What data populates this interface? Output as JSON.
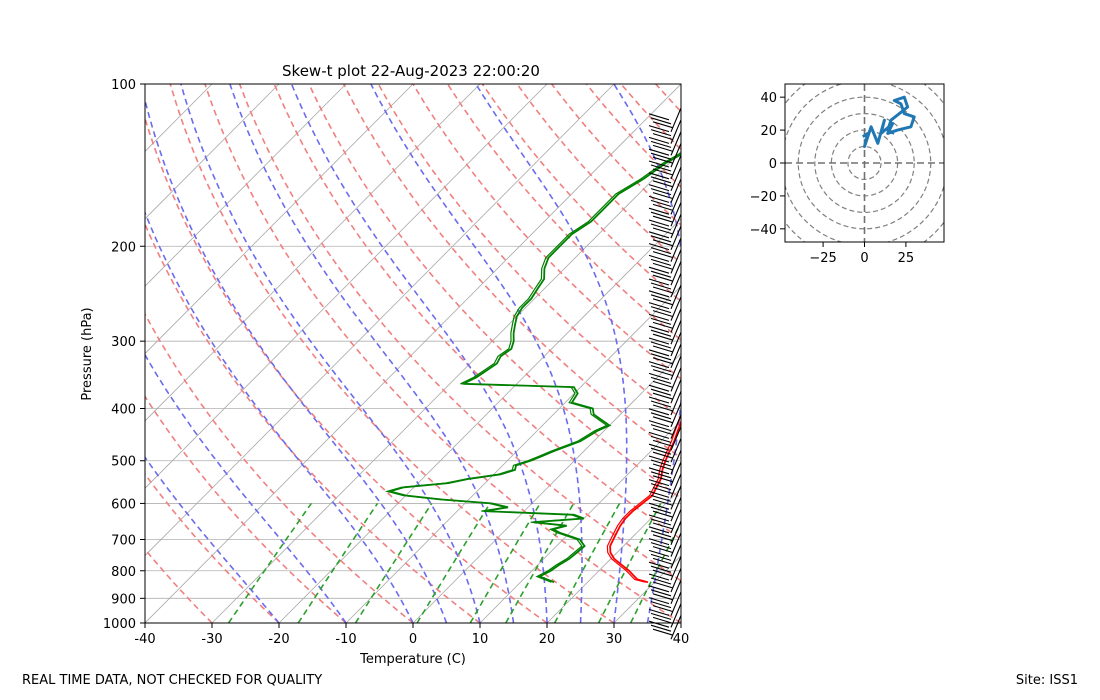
{
  "footer": {
    "left": "REAL TIME DATA, NOT CHECKED FOR QUALITY",
    "right": "Site: ISS1"
  },
  "chart_data": [
    {
      "type": "line",
      "subtype": "skew-t",
      "title": "Skew-t plot 22-Aug-2023 22:00:20",
      "xlabel": "Temperature (C)",
      "ylabel": "Pressure (hPa)",
      "xlim": [
        -40,
        40
      ],
      "ylim": [
        1000,
        100
      ],
      "yscale": "log",
      "xticks": [
        -40,
        -30,
        -20,
        -10,
        0,
        10,
        20,
        30,
        40
      ],
      "yticks": [
        100,
        200,
        300,
        400,
        500,
        600,
        700,
        800,
        900,
        1000
      ],
      "grid": true,
      "colors": {
        "temperature": "#ff0000",
        "dewpoint": "#008000",
        "dry_adiabats": "#f08080",
        "moist_adiabats": "#6b6bee",
        "mixing_ratio": "#2ca02c",
        "isotherms": "#b0b0b0",
        "wind_barbs": "#000000"
      },
      "series": [
        {
          "key": "temperature",
          "points": [
            [
              840,
              29.0
            ],
            [
              830,
              27.0
            ],
            [
              800,
              24.5
            ],
            [
              780,
              22.5
            ],
            [
              760,
              20.5
            ],
            [
              740,
              19.0
            ],
            [
              720,
              18.0
            ],
            [
              700,
              17.5
            ],
            [
              680,
              17.0
            ],
            [
              660,
              16.5
            ],
            [
              640,
              16.2
            ],
            [
              620,
              16.2
            ],
            [
              600,
              16.5
            ],
            [
              580,
              16.8
            ],
            [
              560,
              16.2
            ],
            [
              540,
              15.6
            ],
            [
              520,
              14.5
            ],
            [
              500,
              13.6
            ],
            [
              480,
              12.8
            ],
            [
              460,
              12.0
            ],
            [
              440,
              11.0
            ],
            [
              420,
              10.0
            ],
            [
              400,
              9.0
            ],
            [
              390,
              8.0
            ],
            [
              380,
              7.0
            ],
            [
              370,
              6.5
            ],
            [
              360,
              6.3
            ],
            [
              350,
              6.0
            ],
            [
              340,
              5.5
            ],
            [
              330,
              5.0
            ],
            [
              320,
              4.7
            ],
            [
              310,
              4.2
            ],
            [
              300,
              3.5
            ],
            [
              290,
              3.1
            ],
            [
              280,
              2.9
            ],
            [
              270,
              3.3
            ],
            [
              260,
              3.6
            ],
            [
              250,
              3.2
            ],
            [
              240,
              2.6
            ],
            [
              230,
              2.0
            ],
            [
              220,
              1.2
            ],
            [
              210,
              0.5
            ],
            [
              200,
              -0.2
            ],
            [
              190,
              -1.5
            ],
            [
              180,
              -2.8
            ],
            [
              170,
              -4.0
            ],
            [
              160,
              -5.0
            ],
            [
              150,
              -6.2
            ],
            [
              140,
              -7.8
            ],
            [
              130,
              -9.5
            ],
            [
              125,
              -10.5
            ],
            [
              120,
              -10.5
            ],
            [
              115,
              -9.0
            ],
            [
              110,
              -7.5
            ],
            [
              105,
              -6.2
            ],
            [
              100,
              -6.0
            ]
          ]
        },
        {
          "key": "dewpoint",
          "points": [
            [
              840,
              15.0
            ],
            [
              820,
              12.0
            ],
            [
              800,
              12.8
            ],
            [
              780,
              13.2
            ],
            [
              760,
              13.8
            ],
            [
              740,
              14.0
            ],
            [
              720,
              14.2
            ],
            [
              700,
              12.5
            ],
            [
              690,
              10.5
            ],
            [
              680,
              8.5
            ],
            [
              670,
              7.0
            ],
            [
              660,
              8.5
            ],
            [
              650,
              3.0
            ],
            [
              640,
              10.0
            ],
            [
              630,
              8.0
            ],
            [
              620,
              -6.0
            ],
            [
              610,
              -3.0
            ],
            [
              600,
              -6.0
            ],
            [
              590,
              -14.0
            ],
            [
              580,
              -20.0
            ],
            [
              570,
              -23.0
            ],
            [
              560,
              -21.5
            ],
            [
              550,
              -15.5
            ],
            [
              540,
              -13.0
            ],
            [
              530,
              -9.0
            ],
            [
              520,
              -7.5
            ],
            [
              510,
              -8.0
            ],
            [
              500,
              -6.5
            ],
            [
              490,
              -5.5
            ],
            [
              480,
              -4.5
            ],
            [
              460,
              -2.0
            ],
            [
              440,
              -1.0
            ],
            [
              430,
              0.0
            ],
            [
              420,
              -2.0
            ],
            [
              410,
              -4.0
            ],
            [
              400,
              -5.0
            ],
            [
              390,
              -9.0
            ],
            [
              375,
              -9.5
            ],
            [
              365,
              -11.0
            ],
            [
              360,
              -28.0
            ],
            [
              350,
              -27.0
            ],
            [
              340,
              -26.5
            ],
            [
              330,
              -26.0
            ],
            [
              320,
              -26.5
            ],
            [
              310,
              -26.0
            ],
            [
              300,
              -26.8
            ],
            [
              290,
              -28.0
            ],
            [
              280,
              -29.0
            ],
            [
              270,
              -30.0
            ],
            [
              260,
              -30.5
            ],
            [
              250,
              -30.5
            ],
            [
              240,
              -31.0
            ],
            [
              230,
              -31.5
            ],
            [
              220,
              -33.0
            ],
            [
              210,
              -34.0
            ],
            [
              200,
              -34.0
            ],
            [
              190,
              -34.0
            ],
            [
              180,
              -33.0
            ],
            [
              170,
              -33.0
            ],
            [
              160,
              -33.0
            ],
            [
              150,
              -31.5
            ],
            [
              140,
              -30.5
            ],
            [
              130,
              -28.5
            ],
            [
              120,
              -27.0
            ],
            [
              115,
              -27.0
            ],
            [
              110,
              -26.5
            ],
            [
              105,
              -26.0
            ],
            [
              100,
              -26.0
            ]
          ]
        }
      ]
    },
    {
      "type": "line",
      "subtype": "hodograph",
      "xlim": [
        -48,
        48
      ],
      "ylim": [
        -48,
        48
      ],
      "xticks": [
        -25,
        0,
        25
      ],
      "yticks": [
        -40,
        -20,
        0,
        20,
        40
      ],
      "rings": [
        10,
        20,
        30,
        40,
        50,
        60,
        70
      ],
      "color": "#1f77b4",
      "series": [
        {
          "points": [
            [
              -1,
              16
            ],
            [
              2,
              18
            ],
            [
              0,
              10
            ],
            [
              4,
              22
            ],
            [
              8,
              12
            ],
            [
              12,
              26
            ],
            [
              10,
              18
            ],
            [
              17,
              24
            ],
            [
              14,
              18
            ],
            [
              20,
              20
            ],
            [
              28,
              22
            ],
            [
              30,
              28
            ],
            [
              24,
              30
            ],
            [
              22,
              36
            ],
            [
              18,
              38
            ],
            [
              24,
              40
            ],
            [
              26,
              34
            ],
            [
              16,
              26
            ],
            [
              14,
              20
            ],
            [
              18,
              18
            ]
          ]
        }
      ]
    }
  ]
}
